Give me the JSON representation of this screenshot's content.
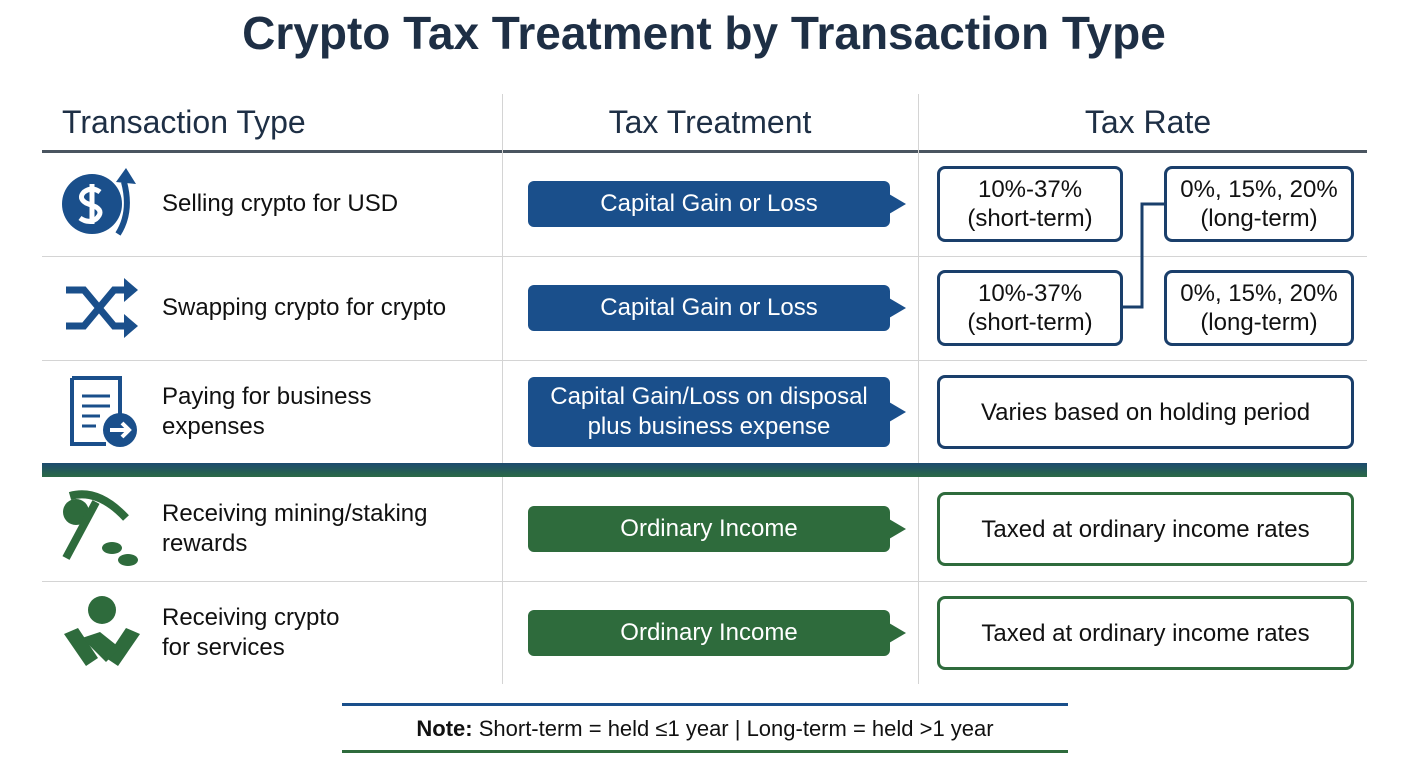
{
  "title": "Crypto Tax Treatment by Transaction Type",
  "table": {
    "headers": [
      "Transaction Type",
      "Tax Treatment",
      "Tax Rate"
    ],
    "rows": [
      {
        "type": [
          "Selling crypto for USD"
        ],
        "treatment": [
          "Capital Gain or Loss"
        ],
        "color": "#1a4f8b",
        "rates": [
          [
            "10%-37%",
            "(short-term)"
          ],
          [
            "0%, 15%, 20%",
            "(long-term)"
          ]
        ]
      },
      {
        "type": [
          "Swapping crypto for crypto"
        ],
        "treatment": [
          "Capital Gain or Loss"
        ],
        "color": "#1a4f8b",
        "rates": [
          [
            "10%-37%",
            "(short-term)"
          ],
          [
            "0%, 15%, 20%",
            "(long-term)"
          ]
        ]
      },
      {
        "type": [
          "Paying for business",
          "expenses"
        ],
        "treatment": [
          "Capital Gain/Loss on disposal",
          "plus business expense"
        ],
        "color": "#1a4f8b",
        "rates": [
          [
            "Varies based on holding period"
          ]
        ]
      },
      {
        "type": [
          "Receiving mining/staking",
          "rewards"
        ],
        "treatment": [
          "Ordinary Income"
        ],
        "color": "#2e6b3c",
        "rates": [
          [
            "Taxed at ordinary income rates"
          ]
        ]
      },
      {
        "type": [
          "Receiving crypto",
          "for services"
        ],
        "treatment": [
          "Ordinary Income"
        ],
        "color": "#2e6b3c",
        "rates": [
          [
            "Taxed at ordinary income rates"
          ]
        ]
      }
    ]
  },
  "note": {
    "label": "Note:",
    "text": "Short-term = held ≤1 year | Long-term = held >1 year"
  }
}
